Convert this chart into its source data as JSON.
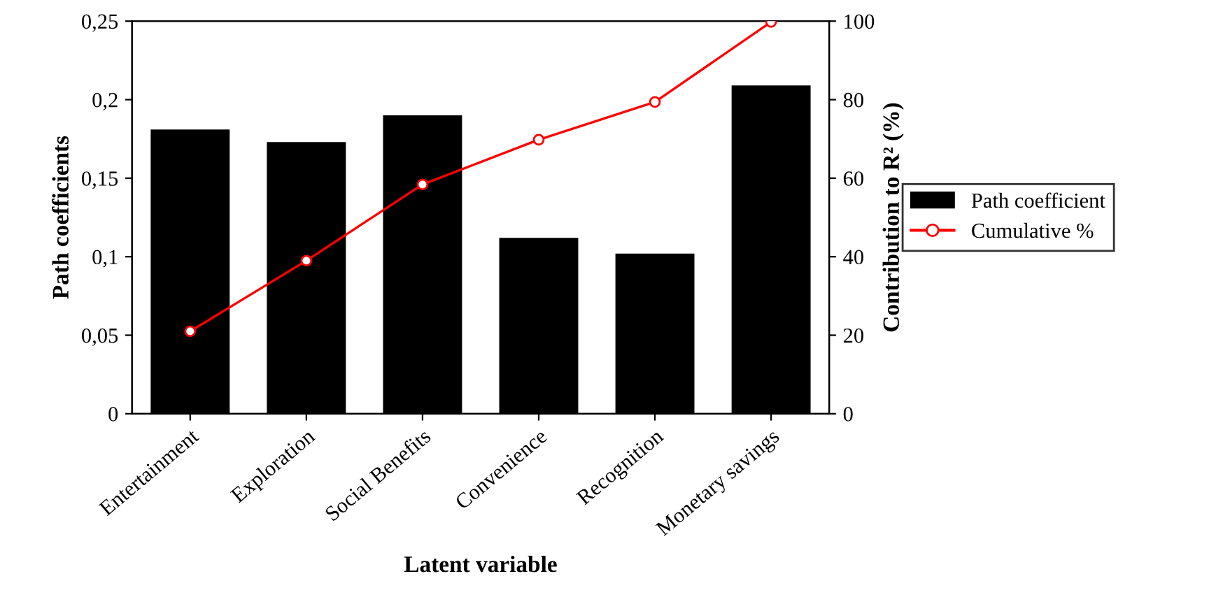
{
  "chart_data": {
    "type": "bar",
    "xlabel": "Latent variable",
    "ylabel": "Path coefficients",
    "y2label": "Contribution to R² (%)",
    "categories": [
      "Entertainment",
      "Exploration",
      "Social Benefits",
      "Convenience",
      "Recognition",
      "Monetary savings"
    ],
    "series": [
      {
        "name": "Path coefficient",
        "color": "#000000",
        "values": [
          0.181,
          0.173,
          0.19,
          0.112,
          0.102,
          0.209
        ]
      },
      {
        "name": "Cumulative %",
        "type": "line",
        "axis": "y2",
        "color": "#ff0000",
        "marker": "circle",
        "values": [
          21,
          39,
          58.4,
          69.8,
          79.4,
          99.8
        ]
      }
    ],
    "ylim": [
      0,
      0.25
    ],
    "yticks": [
      0,
      {
        "value": 0.05,
        "label": "0,05"
      },
      {
        "value": 0.1,
        "label": "0,1"
      },
      {
        "value": 0.15,
        "label": "0,15"
      },
      {
        "value": 0.2,
        "label": "0,2"
      },
      {
        "value": 0.25,
        "label": "0,25"
      }
    ],
    "y2lim": [
      0,
      100
    ],
    "y2ticks": [
      0,
      20,
      40,
      60,
      80,
      100
    ],
    "legend": "right",
    "grid": false
  }
}
